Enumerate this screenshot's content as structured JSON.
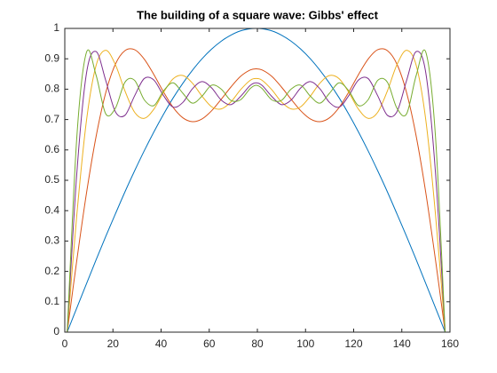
{
  "chart_data": {
    "type": "line",
    "title": "The building of a square wave: Gibbs' effect",
    "x": [
      1,
      5,
      9,
      13,
      17,
      21,
      25,
      29,
      33,
      37,
      41,
      45,
      49,
      53,
      57,
      61,
      65,
      69,
      73,
      77,
      79.5,
      82,
      86,
      90,
      94,
      98,
      102,
      106,
      110,
      114,
      118,
      122,
      126,
      130,
      134,
      138,
      142,
      146,
      150,
      154,
      158
    ],
    "series": [
      {
        "color": "#0072bd",
        "values": [
          0,
          0.08,
          0.159,
          0.238,
          0.315,
          0.389,
          0.462,
          0.531,
          0.597,
          0.659,
          0.717,
          0.771,
          0.819,
          0.862,
          0.9,
          0.932,
          0.958,
          0.978,
          0.992,
          0.999,
          1,
          0.999,
          0.992,
          0.978,
          0.958,
          0.932,
          0.9,
          0.862,
          0.819,
          0.771,
          0.717,
          0.659,
          0.597,
          0.531,
          0.462,
          0.389,
          0.315,
          0.238,
          0.159,
          0.08,
          0
        ]
      },
      {
        "color": "#d95319",
        "values": [
          0,
          0.237,
          0.457,
          0.644,
          0.788,
          0.882,
          0.927,
          0.93,
          0.899,
          0.848,
          0.791,
          0.74,
          0.706,
          0.693,
          0.702,
          0.729,
          0.767,
          0.807,
          0.842,
          0.863,
          0.867,
          0.863,
          0.842,
          0.807,
          0.767,
          0.729,
          0.702,
          0.693,
          0.706,
          0.74,
          0.791,
          0.848,
          0.899,
          0.93,
          0.927,
          0.882,
          0.788,
          0.644,
          0.457,
          0.237,
          0
        ]
      },
      {
        "color": "#edb120",
        "values": [
          0,
          0.386,
          0.696,
          0.878,
          0.928,
          0.881,
          0.794,
          0.724,
          0.704,
          0.734,
          0.789,
          0.834,
          0.845,
          0.82,
          0.777,
          0.742,
          0.735,
          0.758,
          0.798,
          0.829,
          0.835,
          0.829,
          0.798,
          0.758,
          0.735,
          0.742,
          0.777,
          0.82,
          0.845,
          0.834,
          0.789,
          0.734,
          0.704,
          0.724,
          0.794,
          0.881,
          0.928,
          0.878,
          0.696,
          0.386,
          0
        ]
      },
      {
        "color": "#7e2f8e",
        "values": [
          0,
          0.523,
          0.852,
          0.924,
          0.829,
          0.726,
          0.714,
          0.778,
          0.835,
          0.83,
          0.779,
          0.741,
          0.756,
          0.801,
          0.825,
          0.804,
          0.764,
          0.749,
          0.776,
          0.812,
          0.821,
          0.812,
          0.776,
          0.749,
          0.764,
          0.804,
          0.825,
          0.801,
          0.756,
          0.741,
          0.779,
          0.83,
          0.835,
          0.778,
          0.714,
          0.726,
          0.829,
          0.924,
          0.852,
          0.523,
          0
        ]
      },
      {
        "color": "#77ac30",
        "values": [
          0,
          0.642,
          0.921,
          0.846,
          0.719,
          0.737,
          0.823,
          0.829,
          0.765,
          0.746,
          0.794,
          0.821,
          0.787,
          0.754,
          0.777,
          0.813,
          0.8,
          0.763,
          0.765,
          0.802,
          0.813,
          0.802,
          0.765,
          0.763,
          0.8,
          0.813,
          0.777,
          0.754,
          0.787,
          0.821,
          0.794,
          0.746,
          0.765,
          0.829,
          0.823,
          0.737,
          0.719,
          0.846,
          0.921,
          0.642,
          0
        ]
      }
    ],
    "xlim": [
      0,
      160
    ],
    "xticks": [
      0,
      20,
      40,
      60,
      80,
      100,
      120,
      140,
      160
    ],
    "ylim": [
      0,
      1
    ],
    "yticks": [
      0,
      0.1,
      0.2,
      0.3,
      0.4,
      0.5,
      0.6,
      0.7,
      0.8,
      0.9,
      1
    ]
  }
}
